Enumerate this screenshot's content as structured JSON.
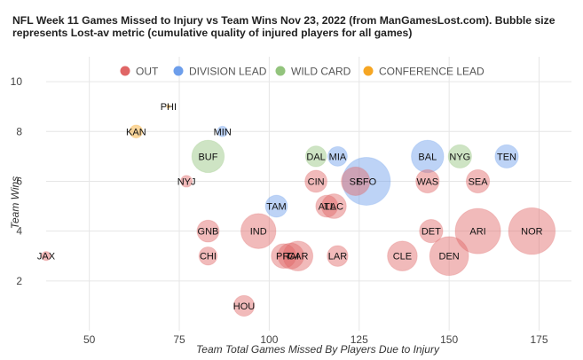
{
  "chart_data": {
    "type": "scatter",
    "title": "NFL Week 11 Games Missed to Injury vs Team Wins Nov 23, 2022 (from ManGamesLost.com). Bubble size represents Lost-av metric (cumulative quality of injured players for all games)",
    "xlabel": "Team Total Games Missed By Players Due to Injury",
    "ylabel": "Team Wins",
    "xlim": [
      38,
      184
    ],
    "ylim": [
      0,
      11
    ],
    "xticks": [
      "50",
      "75",
      "100",
      "125",
      "150",
      "175"
    ],
    "yticks": [
      "2",
      "4",
      "6",
      "8",
      "10"
    ],
    "grid": true,
    "legend_position": "top",
    "series": [
      {
        "name": "OUT",
        "color": "#e06666"
      },
      {
        "name": "DIVISION LEAD",
        "color": "#6d9eeb"
      },
      {
        "name": "WILD CARD",
        "color": "#93c47d"
      },
      {
        "name": "CONFERENCE LEAD",
        "color": "#f6a623"
      }
    ],
    "points": [
      {
        "label": "PHI",
        "x": 72,
        "y": 9,
        "size": 2,
        "status": "CONFERENCE LEAD"
      },
      {
        "label": "KAN",
        "x": 63,
        "y": 8,
        "size": 10,
        "status": "CONFERENCE LEAD"
      },
      {
        "label": "MIN",
        "x": 87,
        "y": 8,
        "size": 8,
        "status": "DIVISION LEAD"
      },
      {
        "label": "BUF",
        "x": 83,
        "y": 7,
        "size": 25,
        "status": "WILD CARD"
      },
      {
        "label": "DAL",
        "x": 113,
        "y": 7,
        "size": 16,
        "status": "WILD CARD"
      },
      {
        "label": "MIA",
        "x": 119,
        "y": 7,
        "size": 15,
        "status": "DIVISION LEAD"
      },
      {
        "label": "BAL",
        "x": 144,
        "y": 7,
        "size": 25,
        "status": "DIVISION LEAD"
      },
      {
        "label": "NYG",
        "x": 153,
        "y": 7,
        "size": 18,
        "status": "WILD CARD"
      },
      {
        "label": "TEN",
        "x": 166,
        "y": 7,
        "size": 18,
        "status": "DIVISION LEAD"
      },
      {
        "label": "NYJ",
        "x": 77,
        "y": 6,
        "size": 9,
        "status": "OUT"
      },
      {
        "label": "CIN",
        "x": 113,
        "y": 6,
        "size": 17,
        "status": "OUT"
      },
      {
        "label": "SF",
        "x": 124,
        "y": 6,
        "size": 22,
        "status": "OUT"
      },
      {
        "label": "SFO",
        "x": 127,
        "y": 6,
        "size": 37,
        "status": "DIVISION LEAD"
      },
      {
        "label": "WAS",
        "x": 144,
        "y": 6,
        "size": 18,
        "status": "OUT"
      },
      {
        "label": "SEA",
        "x": 158,
        "y": 6,
        "size": 18,
        "status": "OUT"
      },
      {
        "label": "TAM",
        "x": 102,
        "y": 5,
        "size": 17,
        "status": "DIVISION LEAD"
      },
      {
        "label": "ATL",
        "x": 116,
        "y": 5,
        "size": 17,
        "status": "OUT"
      },
      {
        "label": "LAC",
        "x": 118,
        "y": 5,
        "size": 19,
        "status": "OUT"
      },
      {
        "label": "GNB",
        "x": 83,
        "y": 4,
        "size": 17,
        "status": "OUT"
      },
      {
        "label": "IND",
        "x": 97,
        "y": 4,
        "size": 27,
        "status": "OUT"
      },
      {
        "label": "DET",
        "x": 145,
        "y": 4,
        "size": 18,
        "status": "OUT"
      },
      {
        "label": "ARI",
        "x": 158,
        "y": 4,
        "size": 35,
        "status": "OUT"
      },
      {
        "label": "NOR",
        "x": 173,
        "y": 4,
        "size": 36,
        "status": "OUT"
      },
      {
        "label": "JAX",
        "x": 38,
        "y": 3,
        "size": 7,
        "status": "OUT"
      },
      {
        "label": "CHI",
        "x": 83,
        "y": 3,
        "size": 14,
        "status": "OUT"
      },
      {
        "label": "PIT",
        "x": 104,
        "y": 3,
        "size": 19,
        "status": "OUT"
      },
      {
        "label": "RAI",
        "x": 106,
        "y": 3,
        "size": 20,
        "status": "OUT"
      },
      {
        "label": "CAR",
        "x": 108,
        "y": 3,
        "size": 23,
        "status": "OUT"
      },
      {
        "label": "LAR",
        "x": 119,
        "y": 3,
        "size": 16,
        "status": "OUT"
      },
      {
        "label": "CLE",
        "x": 137,
        "y": 3,
        "size": 23,
        "status": "OUT"
      },
      {
        "label": "DEN",
        "x": 150,
        "y": 3,
        "size": 30,
        "status": "OUT"
      },
      {
        "label": "HOU",
        "x": 93,
        "y": 1,
        "size": 16,
        "status": "OUT"
      }
    ]
  }
}
